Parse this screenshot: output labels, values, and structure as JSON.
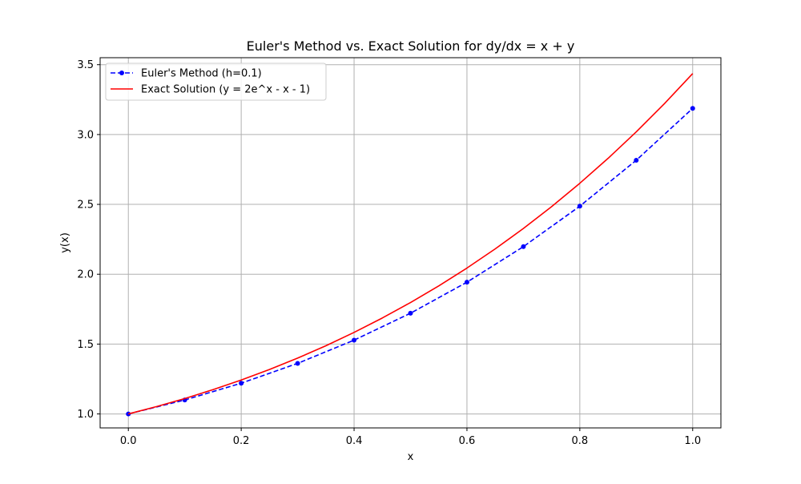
{
  "chart_data": {
    "type": "line",
    "title": "Euler's Method vs. Exact Solution for dy/dx = x + y",
    "xlabel": "x",
    "ylabel": "y(x)",
    "xlim": [
      -0.05,
      1.05
    ],
    "ylim": [
      0.9,
      3.55
    ],
    "x_ticks": [
      0.0,
      0.2,
      0.4,
      0.6,
      0.8,
      1.0
    ],
    "x_tick_labels": [
      "0.0",
      "0.2",
      "0.4",
      "0.6",
      "0.8",
      "1.0"
    ],
    "y_ticks": [
      1.0,
      1.5,
      2.0,
      2.5,
      3.0,
      3.5
    ],
    "y_tick_labels": [
      "1.0",
      "1.5",
      "2.0",
      "2.5",
      "3.0",
      "3.5"
    ],
    "grid": true,
    "legend_position": "top-left",
    "series": [
      {
        "name": "Euler's Method (h=0.1)",
        "color": "#0000ff",
        "line_style": "dashed",
        "marker": "circle",
        "x": [
          0.0,
          0.1,
          0.2,
          0.3,
          0.4,
          0.5,
          0.6,
          0.7,
          0.8,
          0.9,
          1.0
        ],
        "y": [
          1.0,
          1.1,
          1.22,
          1.362,
          1.5282,
          1.721,
          1.9431,
          2.1974,
          2.4872,
          2.8159,
          3.1875
        ]
      },
      {
        "name": "Exact Solution (y = 2e^x - x - 1)",
        "color": "#ff0000",
        "line_style": "solid",
        "marker": "none",
        "x": [
          0.0,
          0.05,
          0.1,
          0.15,
          0.2,
          0.25,
          0.3,
          0.35,
          0.4,
          0.45,
          0.5,
          0.55,
          0.6,
          0.65,
          0.7,
          0.75,
          0.8,
          0.85,
          0.9,
          0.95,
          1.0
        ],
        "y": [
          1.0,
          1.0525,
          1.1103,
          1.1737,
          1.2428,
          1.318,
          1.3997,
          1.4881,
          1.5836,
          1.6866,
          1.7974,
          1.9166,
          2.0442,
          2.1811,
          2.3275,
          2.484,
          2.6511,
          2.8293,
          3.0192,
          3.2214,
          3.4366
        ]
      }
    ]
  }
}
